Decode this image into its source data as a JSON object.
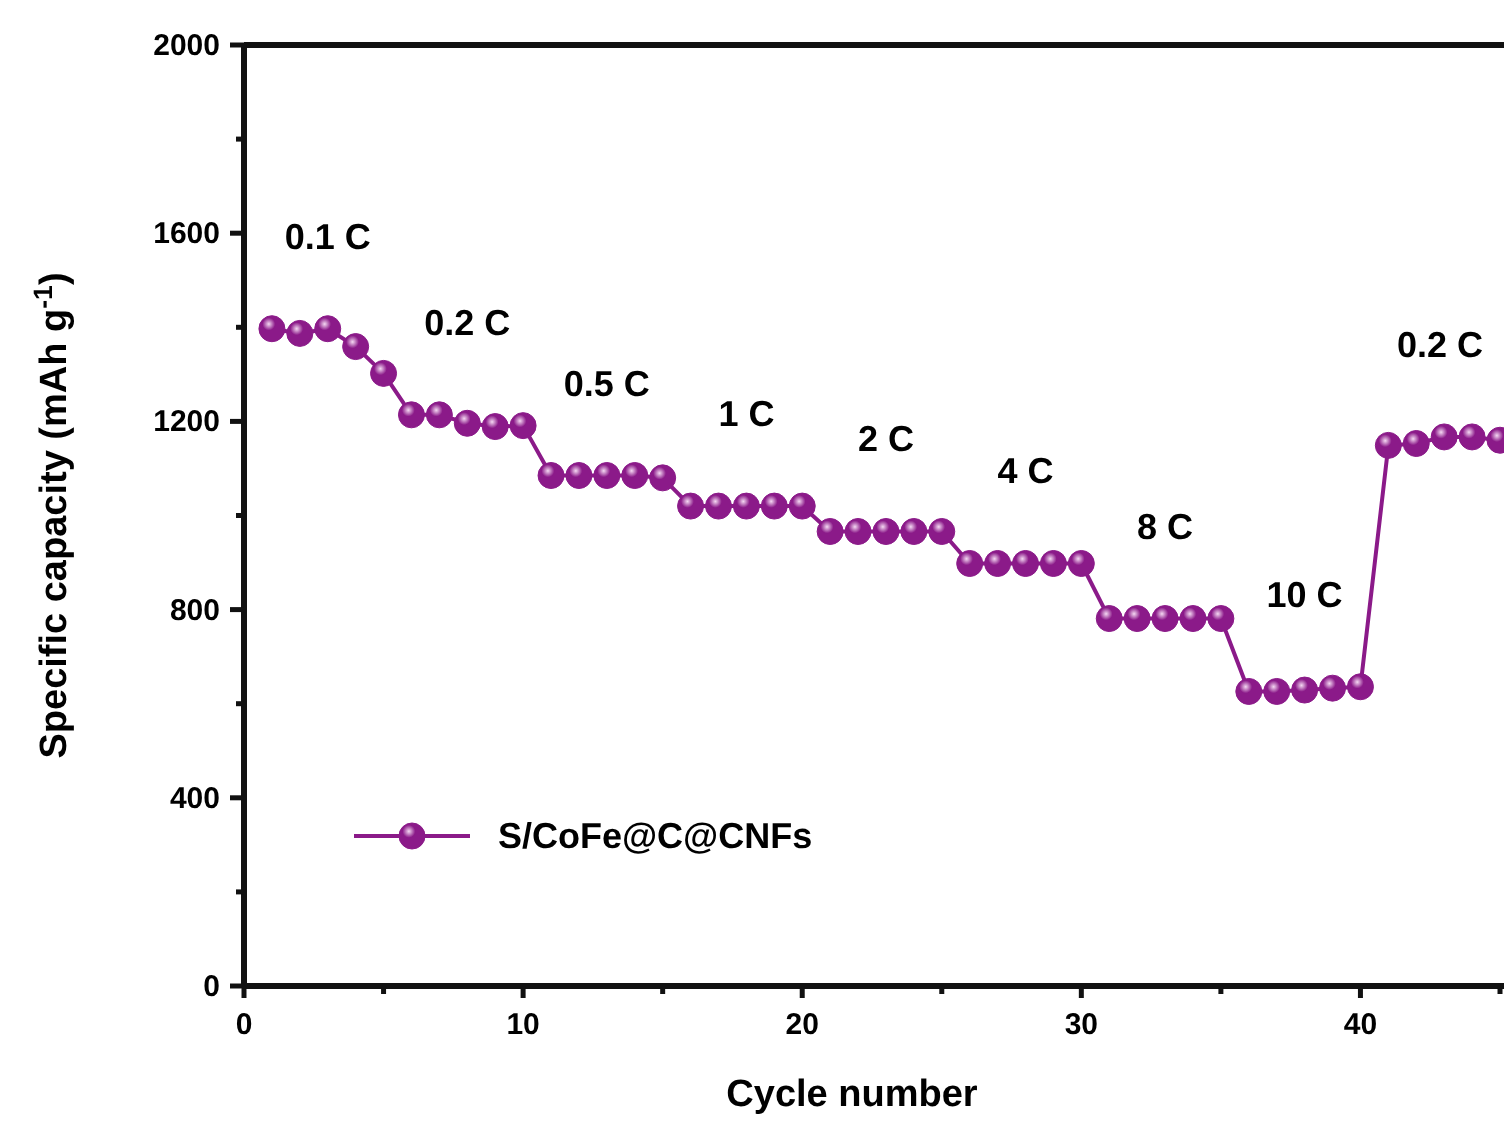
{
  "chart_data": {
    "type": "line",
    "xlabel": "Cycle number",
    "ylabel": "Specific capacity (mAh g$^{-1}$)",
    "xlim": [
      0,
      45
    ],
    "ylim": [
      0,
      2000
    ],
    "xticks": [
      0,
      {
        "value": 5,
        "label": null
      },
      10,
      {
        "value": 15,
        "label": null
      },
      20,
      {
        "value": 25,
        "label": null
      },
      30,
      {
        "value": 35,
        "label": null
      },
      40,
      {
        "value": 45,
        "label": null
      }
    ],
    "yticks": [
      0,
      {
        "value": 200,
        "label": null
      },
      400,
      {
        "value": 600,
        "label": null
      },
      800,
      {
        "value": 1000,
        "label": null
      },
      1200,
      {
        "value": 1400,
        "label": null
      },
      1600,
      {
        "value": 1800,
        "label": null
      },
      2000
    ],
    "series": [
      {
        "name": "S/CoFe@C@CNFs",
        "color": "#8b1a89",
        "x": [
          1,
          2,
          3,
          4,
          5,
          6,
          7,
          8,
          9,
          10,
          11,
          12,
          13,
          14,
          15,
          16,
          17,
          18,
          19,
          20,
          21,
          22,
          23,
          24,
          25,
          26,
          27,
          28,
          29,
          30,
          31,
          32,
          33,
          34,
          35,
          36,
          37,
          38,
          39,
          40,
          41,
          42,
          43,
          44,
          45
        ],
        "values": [
          1397,
          1387,
          1397,
          1359,
          1302,
          1214,
          1214,
          1196,
          1189,
          1191,
          1085,
          1085,
          1085,
          1085,
          1080,
          1020,
          1020,
          1020,
          1020,
          1020,
          966,
          966,
          966,
          966,
          966,
          898,
          898,
          898,
          898,
          898,
          781,
          781,
          781,
          781,
          781,
          626,
          626,
          629,
          633,
          636,
          1149,
          1153,
          1167,
          1167,
          1160
        ]
      }
    ],
    "marker": "circle",
    "line_style": "solid",
    "legend": "bottom left",
    "grid": false,
    "annotations": [
      "0.1 C",
      "0.2 C",
      "0.5 C",
      "1 C",
      "2 C",
      "4 C",
      "8 C",
      "10 C",
      "0.2 C"
    ]
  }
}
